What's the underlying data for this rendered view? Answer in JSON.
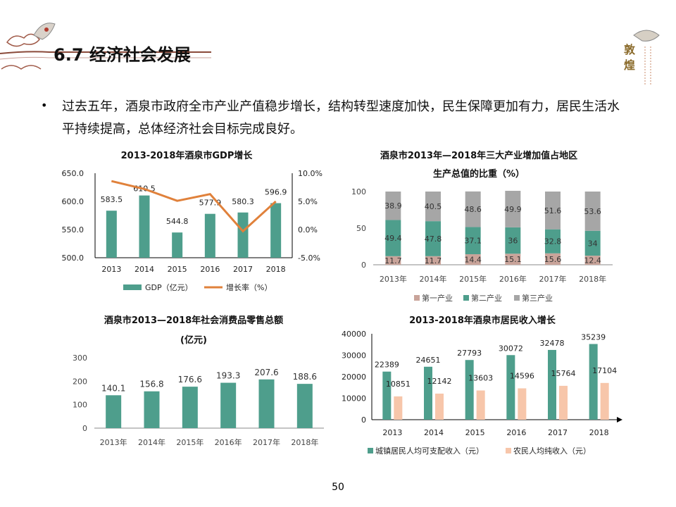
{
  "header": {
    "title": "6.7 经济社会发展"
  },
  "logo": {
    "text": "敦煌"
  },
  "body": {
    "bullet": "•",
    "text": "过去五年，酒泉市政府全市产业产值稳步增长，结构转型速度加快，民生保障更加有力，居民生活水平持续提高，总体经济社会目标完成良好。"
  },
  "page_number": "50",
  "colors": {
    "teal": "#4e9e8c",
    "orange": "#e0813b",
    "gray": "#a6a6a6",
    "rose": "#c9a49a",
    "peach": "#f7c6aa"
  },
  "chart_data": [
    {
      "type": "bar+line",
      "title": "2013-2018年酒泉市GDP增长",
      "categories": [
        "2013",
        "2014",
        "2015",
        "2016",
        "2017",
        "2018"
      ],
      "ylim": [
        500,
        650
      ],
      "yticks": [
        "500.0",
        "550.0",
        "600.0",
        "650.0"
      ],
      "y2lim": [
        -5,
        10
      ],
      "y2ticks": [
        "-5.0%",
        "0.0%",
        "5.0%",
        "10.0%"
      ],
      "series": [
        {
          "name": "GDP（亿元）",
          "kind": "bar",
          "values": [
            583.5,
            610.5,
            544.8,
            577.9,
            580.3,
            596.9
          ],
          "labels": [
            "583.5",
            "610.5",
            "544.8",
            "577.9",
            "580.3",
            "596.9"
          ]
        },
        {
          "name": "增长率（%）",
          "kind": "line",
          "axis": "right",
          "values": [
            8.6,
            7.2,
            5.1,
            6.3,
            -0.3,
            5.0
          ]
        }
      ],
      "legend": "bottom"
    },
    {
      "type": "stacked-bar",
      "title": "酒泉市2013年—2018年三大产业增加值占地区",
      "subtitle": "生产总值的比重（%）",
      "categories": [
        "2013年",
        "2014年",
        "2015年",
        "2016年",
        "2017年",
        "2018年"
      ],
      "ylim": [
        0,
        100
      ],
      "yticks": [
        "0",
        "50",
        "100"
      ],
      "series": [
        {
          "name": "第一产业",
          "values": [
            11.7,
            11.7,
            14.4,
            15.1,
            15.6,
            12.4
          ],
          "labels": [
            "11.7",
            "11.7",
            "14.4",
            "15.1",
            "15.6",
            "12.4"
          ]
        },
        {
          "name": "第二产业",
          "values": [
            49.4,
            47.8,
            37.1,
            36,
            32.8,
            34
          ],
          "labels": [
            "49.4",
            "47.8",
            "37.1",
            "36",
            "32.8",
            "34"
          ]
        },
        {
          "name": "第三产业",
          "values": [
            38.9,
            40.5,
            48.6,
            49.9,
            51.6,
            53.6
          ],
          "labels": [
            "38.9",
            "40.5",
            "48.6",
            "49.9",
            "51.6",
            "53.6"
          ]
        }
      ],
      "legend": "bottom"
    },
    {
      "type": "bar",
      "title": "酒泉市2013—2018年社会消费品零售总额",
      "subtitle": "(亿元)",
      "categories": [
        "2013年",
        "2014年",
        "2015年",
        "2016年",
        "2017年",
        "2018年"
      ],
      "values": [
        140.1,
        156.8,
        176.6,
        193.3,
        207.6,
        188.6
      ],
      "labels": [
        "140.1",
        "156.8",
        "176.6",
        "193.3",
        "207.6",
        "188.6"
      ],
      "ylim": [
        0,
        300
      ],
      "yticks": [
        "0",
        "100",
        "200",
        "300"
      ]
    },
    {
      "type": "bar",
      "title": "2013-2018年酒泉市居民收入增长",
      "categories": [
        "2013",
        "2014",
        "2015",
        "2016",
        "2017",
        "2018"
      ],
      "ylim": [
        0,
        40000
      ],
      "yticks": [
        "0",
        "10000",
        "20000",
        "30000",
        "40000"
      ],
      "series": [
        {
          "name": "城镇居民人均可支配收入（元）",
          "values": [
            22389,
            24651,
            27793,
            30072,
            32478,
            35239
          ],
          "labels": [
            "22389",
            "24651",
            "27793",
            "30072",
            "32478",
            "35239"
          ]
        },
        {
          "name": "农民人均纯收入（元）",
          "values": [
            10851,
            12142,
            13603,
            14596,
            15764,
            17104
          ],
          "labels": [
            "10851",
            "12142",
            "13603",
            "14596",
            "15764",
            "17104"
          ]
        }
      ],
      "legend": "bottom"
    }
  ]
}
